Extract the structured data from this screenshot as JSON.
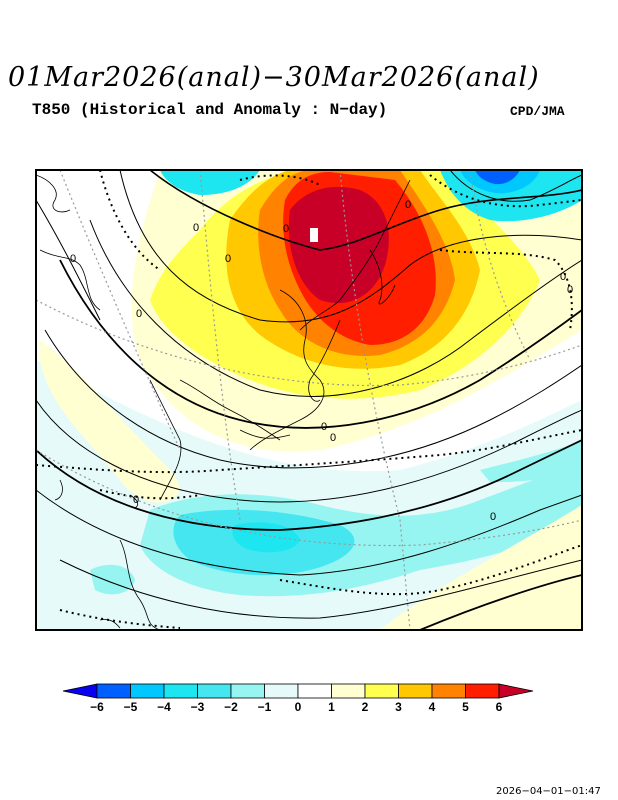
{
  "header": {
    "title": "01Mar2026(anal)−30Mar2026(anal)",
    "subtitle": "T850 (Historical and Anomaly : N−day)",
    "credit": "CPD/JMA"
  },
  "map": {
    "contour_labels": [
      "0",
      "0",
      "0",
      "0",
      "0",
      "0",
      "0",
      "0",
      "0",
      "0",
      "0",
      "0"
    ]
  },
  "colorbar": {
    "labels": [
      "−6",
      "−5",
      "−4",
      "−3",
      "−2",
      "−1",
      "0",
      "1",
      "2",
      "3",
      "4",
      "5",
      "6"
    ],
    "colors": [
      "#0a00f0",
      "#0060ff",
      "#00c8ff",
      "#1ee6f0",
      "#46e6f0",
      "#96f5f0",
      "#e6fafa",
      "#ffffff",
      "#ffffd2",
      "#ffff50",
      "#ffc800",
      "#ff8200",
      "#ff1e00",
      "#c80028"
    ]
  },
  "timestamp": "2026−04−01−01:47"
}
